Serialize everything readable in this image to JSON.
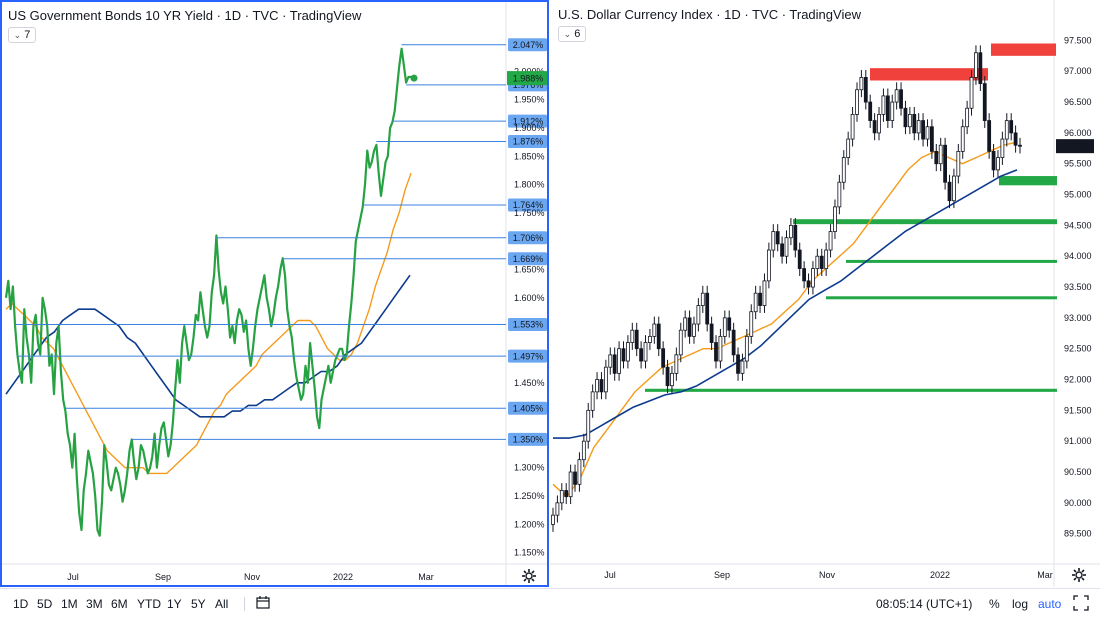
{
  "left_pane": {
    "title": "US Government Bonds 10 YR Yield · 1D · TVC · TradingView",
    "indicator_badge": "7",
    "price_scale": [
      "2.000%",
      "1.950%",
      "1.900%",
      "1.850%",
      "1.800%",
      "1.750%",
      "1.650%",
      "1.600%",
      "1.450%",
      "1.300%",
      "1.250%",
      "1.200%",
      "1.150%"
    ],
    "time_labels": [
      "Jul",
      "Sep",
      "Nov",
      "2022",
      "Mar"
    ],
    "level_tags": [
      "2.047%",
      "1.976%",
      "1.912%",
      "1.876%",
      "1.764%",
      "1.706%",
      "1.669%",
      "1.553%",
      "1.497%",
      "1.405%",
      "1.350%"
    ],
    "last_price_tag": "1.988%"
  },
  "right_pane": {
    "title": "U.S. Dollar Currency Index · 1D · TVC · TradingView",
    "indicator_badge": "6",
    "price_scale": [
      "97.500",
      "97.000",
      "96.500",
      "96.000",
      "95.500",
      "95.000",
      "94.500",
      "94.000",
      "93.500",
      "93.000",
      "92.500",
      "92.000",
      "91.500",
      "91.000",
      "90.500",
      "90.000",
      "89.500"
    ],
    "time_labels": [
      "Jul",
      "Sep",
      "Nov",
      "2022",
      "Mar"
    ],
    "last_price_tag": "95.785"
  },
  "toolbar": {
    "ranges": [
      "1D",
      "5D",
      "1M",
      "3M",
      "6M",
      "YTD",
      "1Y",
      "5Y",
      "All"
    ],
    "time": "08:05:14 (UTC+1)",
    "percent": "%",
    "log": "log",
    "auto": "auto"
  },
  "colors": {
    "price_green": "#27a243",
    "ma_fast": "#f59b1b",
    "ma_slow": "#0d3b8e",
    "level_line": "#3b82e0",
    "tag_fill": "#6aa7f0",
    "support_zone": "#22a846",
    "resistance_zone": "#f0413c",
    "last_price_tag": "#22a846",
    "accent": "#2962ff"
  },
  "chart_data": [
    {
      "type": "line",
      "title": "US Government Bonds 10 YR Yield · 1D · TVC · TradingView",
      "x_ticks": [
        "Jul",
        "Sep",
        "Nov",
        "2022",
        "Mar"
      ],
      "ylim": [
        1.13,
        2.08
      ],
      "y_unit": "%",
      "grid": false,
      "series": [
        {
          "role": "price",
          "values": [
            1.6,
            1.63,
            1.58,
            1.62,
            1.55,
            1.5,
            1.47,
            1.45,
            1.58,
            1.53,
            1.5,
            1.45,
            1.55,
            1.57,
            1.52,
            1.5,
            1.6,
            1.58,
            1.55,
            1.48,
            1.5,
            1.43,
            1.52,
            1.55,
            1.47,
            1.42,
            1.4,
            1.36,
            1.34,
            1.3,
            1.36,
            1.28,
            1.22,
            1.19,
            1.26,
            1.29,
            1.33,
            1.31,
            1.29,
            1.25,
            1.19,
            1.18,
            1.24,
            1.34,
            1.31,
            1.27,
            1.26,
            1.28,
            1.3,
            1.29,
            1.27,
            1.24,
            1.26,
            1.29,
            1.33,
            1.35,
            1.31,
            1.28,
            1.3,
            1.34,
            1.33,
            1.31,
            1.29,
            1.3,
            1.32,
            1.36,
            1.3,
            1.34,
            1.37,
            1.38,
            1.35,
            1.32,
            1.34,
            1.38,
            1.44,
            1.49,
            1.45,
            1.52,
            1.55,
            1.52,
            1.49,
            1.5,
            1.53,
            1.57,
            1.56,
            1.61,
            1.58,
            1.55,
            1.53,
            1.55,
            1.61,
            1.64,
            1.71,
            1.65,
            1.61,
            1.59,
            1.62,
            1.58,
            1.53,
            1.55,
            1.52,
            1.56,
            1.58,
            1.57,
            1.54,
            1.56,
            1.51,
            1.48,
            1.51,
            1.55,
            1.58,
            1.6,
            1.62,
            1.64,
            1.6,
            1.58,
            1.55,
            1.57,
            1.6,
            1.62,
            1.65,
            1.67,
            1.64,
            1.58,
            1.55,
            1.53,
            1.49,
            1.46,
            1.44,
            1.42,
            1.43,
            1.48,
            1.45,
            1.52,
            1.48,
            1.44,
            1.39,
            1.37,
            1.42,
            1.44,
            1.46,
            1.48,
            1.45,
            1.47,
            1.49,
            1.5,
            1.51,
            1.51,
            1.49,
            1.5,
            1.55,
            1.59,
            1.64,
            1.7,
            1.72,
            1.74,
            1.76,
            1.8,
            1.86,
            1.83,
            1.84,
            1.86,
            1.87,
            1.82,
            1.78,
            1.81,
            1.84,
            1.85,
            1.9,
            1.91,
            1.93,
            1.97,
            2.01,
            2.04,
            2.01,
            1.98,
            1.99,
            1.99,
            1.988
          ],
          "color": "#27a243"
        },
        {
          "role": "fast moving average",
          "values": [
            1.58,
            1.59,
            1.58,
            1.57,
            1.56,
            1.55,
            1.53,
            1.52,
            1.51,
            1.49,
            1.47,
            1.45,
            1.43,
            1.41,
            1.39,
            1.37,
            1.35,
            1.33,
            1.32,
            1.31,
            1.3,
            1.3,
            1.3,
            1.3,
            1.29,
            1.29,
            1.29,
            1.29,
            1.3,
            1.31,
            1.32,
            1.33,
            1.34,
            1.36,
            1.38,
            1.4,
            1.41,
            1.43,
            1.44,
            1.45,
            1.46,
            1.47,
            1.48,
            1.5,
            1.51,
            1.52,
            1.53,
            1.54,
            1.55,
            1.56,
            1.56,
            1.56,
            1.55,
            1.53,
            1.51,
            1.5,
            1.49,
            1.49,
            1.5,
            1.52,
            1.55,
            1.58,
            1.62,
            1.65,
            1.68,
            1.72,
            1.75,
            1.79,
            1.82
          ],
          "color": "#f59b1b"
        },
        {
          "role": "slow moving average",
          "values": [
            1.43,
            1.45,
            1.47,
            1.49,
            1.51,
            1.53,
            1.54,
            1.56,
            1.57,
            1.58,
            1.58,
            1.58,
            1.57,
            1.56,
            1.55,
            1.53,
            1.52,
            1.5,
            1.48,
            1.46,
            1.44,
            1.42,
            1.41,
            1.4,
            1.39,
            1.39,
            1.39,
            1.39,
            1.4,
            1.4,
            1.41,
            1.41,
            1.42,
            1.42,
            1.43,
            1.44,
            1.45,
            1.45,
            1.46,
            1.47,
            1.47,
            1.48,
            1.5,
            1.51,
            1.52,
            1.54,
            1.56,
            1.58,
            1.6,
            1.62,
            1.64
          ],
          "color": "#0d3b8e"
        }
      ],
      "levels": [
        2.047,
        1.976,
        1.912,
        1.876,
        1.764,
        1.706,
        1.669,
        1.553,
        1.497,
        1.405,
        1.35
      ],
      "last_value": 1.988
    },
    {
      "type": "candlestick",
      "title": "U.S. Dollar Currency Index · 1D · TVC · TradingView",
      "x_ticks": [
        "Jul",
        "Sep",
        "Nov",
        "2022",
        "Mar"
      ],
      "ylim": [
        89.3,
        97.75
      ],
      "grid": false,
      "closes": [
        89.8,
        90.0,
        90.2,
        90.1,
        90.5,
        90.3,
        90.7,
        91.0,
        91.5,
        91.8,
        92.0,
        91.8,
        92.2,
        92.4,
        92.1,
        92.5,
        92.3,
        92.6,
        92.8,
        92.5,
        92.3,
        92.6,
        92.7,
        92.9,
        92.5,
        92.2,
        91.9,
        92.1,
        92.4,
        92.8,
        93.0,
        92.7,
        92.9,
        93.2,
        93.4,
        92.9,
        92.6,
        92.3,
        92.7,
        93.0,
        92.8,
        92.4,
        92.1,
        92.3,
        92.7,
        93.1,
        93.4,
        93.2,
        93.6,
        94.1,
        94.4,
        94.2,
        94.0,
        94.3,
        94.5,
        94.1,
        93.8,
        93.6,
        93.5,
        93.8,
        94.0,
        93.8,
        94.1,
        94.4,
        94.8,
        95.2,
        95.6,
        95.9,
        96.3,
        96.7,
        96.9,
        96.5,
        96.2,
        96.0,
        96.3,
        96.6,
        96.2,
        96.5,
        96.7,
        96.4,
        96.1,
        96.3,
        96.0,
        96.2,
        95.9,
        96.1,
        95.7,
        95.5,
        95.8,
        95.2,
        94.9,
        95.3,
        95.7,
        96.1,
        96.4,
        96.9,
        97.3,
        96.8,
        96.2,
        95.7,
        95.4,
        95.6,
        95.9,
        96.2,
        96.0,
        95.8,
        95.785
      ],
      "series": [
        {
          "role": "fast moving average",
          "values": [
            90.3,
            90.1,
            90.4,
            90.9,
            91.2,
            91.5,
            91.8,
            92.0,
            92.2,
            92.3,
            92.4,
            92.5,
            92.5,
            92.6,
            92.7,
            92.8,
            92.9,
            93.1,
            93.3,
            93.6,
            93.8,
            94.0,
            94.2,
            94.5,
            94.8,
            95.1,
            95.4,
            95.6,
            95.7,
            95.6,
            95.5,
            95.6,
            95.7,
            95.8,
            95.85
          ],
          "color": "#f59b1b"
        },
        {
          "role": "slow moving average",
          "values": [
            91.05,
            91.05,
            91.1,
            91.25,
            91.4,
            91.55,
            91.65,
            91.75,
            91.8,
            91.9,
            92.05,
            92.2,
            92.35,
            92.55,
            92.8,
            93.05,
            93.3,
            93.45,
            93.6,
            93.8,
            94.0,
            94.2,
            94.4,
            94.55,
            94.7,
            94.85,
            95.0,
            95.15,
            95.3,
            95.4
          ],
          "color": "#0d3b8e"
        }
      ],
      "resistance_zones": [
        [
          96.85,
          97.05
        ],
        [
          97.25,
          97.45
        ]
      ],
      "support_zones": [
        [
          95.15,
          95.3
        ],
        [
          94.52,
          94.6
        ],
        [
          93.92,
          93.94
        ],
        [
          93.33,
          93.35
        ],
        [
          91.8,
          91.85
        ]
      ],
      "last_value": 95.785
    }
  ]
}
